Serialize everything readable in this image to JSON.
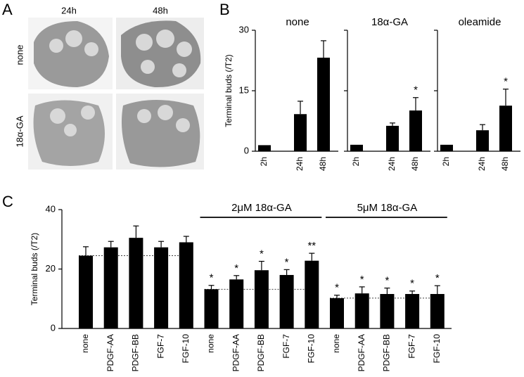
{
  "panel_labels": [
    "A",
    "B",
    "C"
  ],
  "panel_a": {
    "columns": [
      "24h",
      "48h"
    ],
    "rows": [
      "none",
      "18α-GA"
    ]
  },
  "chart_data": [
    {
      "type": "bar",
      "title": "none",
      "ylabel": "Terminal buds  (/T2)",
      "categories": [
        "2h",
        "24h",
        "48h"
      ],
      "values": [
        1.5,
        9.2,
        23.2
      ],
      "errors": [
        null,
        3.2,
        4.2
      ],
      "color": "#000000",
      "ylim": [
        0,
        30
      ],
      "yticks": [
        0,
        15,
        30
      ]
    },
    {
      "type": "bar",
      "title": "18α-GA",
      "categories": [
        "2h",
        "24h",
        "48h"
      ],
      "values": [
        1.6,
        6.3,
        10.1
      ],
      "errors": [
        null,
        0.7,
        3.2
      ],
      "annotations": [
        null,
        null,
        "*"
      ],
      "color": "#000000",
      "ylim": [
        0,
        30
      ],
      "yticks": [
        0,
        15,
        30
      ]
    },
    {
      "type": "bar",
      "title": "oleamide",
      "categories": [
        "2h",
        "24h",
        "48h"
      ],
      "values": [
        1.6,
        5.2,
        11.3
      ],
      "errors": [
        null,
        1.4,
        4.1
      ],
      "annotations": [
        null,
        null,
        "*"
      ],
      "color": "#000000",
      "ylim": [
        0,
        30
      ],
      "yticks": [
        0,
        15,
        30
      ]
    },
    {
      "type": "grouped-bar",
      "ylabel": "Terminal buds  (/T2)",
      "color": "#000000",
      "ylim": [
        0,
        40
      ],
      "yticks": [
        0,
        20,
        40
      ],
      "groups": [
        {
          "categories": [
            "none",
            "PDGF-AA",
            "PDGF-BB",
            "FGF-7",
            "FGF-10"
          ],
          "values": [
            24.5,
            27.3,
            30.5,
            27.3,
            29.0
          ],
          "errors": [
            3.0,
            2.0,
            4.0,
            2.0,
            2.0
          ]
        },
        {
          "name": "2μM 18α-GA",
          "categories": [
            "none",
            "PDGF-AA",
            "PDGF-BB",
            "FGF-7",
            "FGF-10"
          ],
          "values": [
            13.2,
            16.5,
            19.6,
            18.0,
            22.8
          ],
          "errors": [
            1.3,
            1.3,
            3.0,
            1.8,
            2.5
          ],
          "annotations": [
            "*",
            "*",
            "*",
            "*",
            "**"
          ]
        },
        {
          "name": "5μM 18α-GA",
          "categories": [
            "none",
            "PDGF-AA",
            "PDGF-BB",
            "FGF-7",
            "FGF-10"
          ],
          "values": [
            10.2,
            11.8,
            11.6,
            11.6,
            11.6
          ],
          "errors": [
            1.0,
            2.2,
            2.0,
            1.0,
            2.8
          ],
          "annotations": [
            "*",
            "*",
            "*",
            "*",
            "*"
          ]
        }
      ]
    }
  ]
}
